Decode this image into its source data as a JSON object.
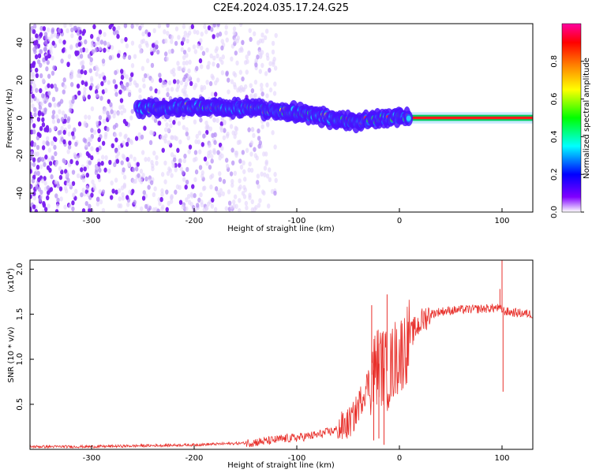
{
  "title": "C2E4.2024.035.17.24.G25",
  "chart_data": [
    {
      "type": "heatmap",
      "xlabel": "Height of straight line (km)",
      "ylabel": "Frequency (Hz)",
      "xlim": [
        -360,
        130
      ],
      "ylim": [
        -50,
        50
      ],
      "xticks": [
        -300,
        -200,
        -100,
        0,
        100
      ],
      "xtick_labels": [
        "-300",
        "-200",
        "-100",
        "0",
        "100"
      ],
      "yticks": [
        -40,
        -20,
        0,
        20,
        40
      ],
      "ytick_labels": [
        "-40",
        "-20",
        "0",
        "20",
        "40"
      ],
      "colorbar": {
        "label": "Normalized spectral amplitude",
        "range": [
          0,
          1
        ],
        "ticks": [
          0.0,
          0.2,
          0.4,
          0.6,
          0.8
        ],
        "tick_labels": [
          "0.0",
          "0.2",
          "0.4",
          "0.6",
          "0.8"
        ],
        "colormap": [
          "#ffffff",
          "#8000ff",
          "#0000ff",
          "#00ffff",
          "#00ff00",
          "#ffff00",
          "#ff8000",
          "#ff0000",
          "#ff00a0"
        ]
      },
      "ridge": {
        "x": [
          -255,
          -200,
          -150,
          -120,
          -100,
          -80,
          -60,
          -40,
          -25,
          -10,
          0,
          10,
          100,
          130
        ],
        "y": [
          5,
          6,
          5,
          4,
          3,
          1,
          -1,
          -2,
          -1,
          0,
          1,
          0,
          0,
          0
        ]
      },
      "noise_region": {
        "x_from": -360,
        "x_to": -160
      }
    },
    {
      "type": "line",
      "xlabel": "Height of straight line (km)",
      "ylabel": "SNR (10 * v/v)",
      "yscale_label": "(x10",
      "yscale_exp": "4",
      "yscale_close": ")",
      "xlim": [
        -360,
        130
      ],
      "ylim": [
        0,
        2.1
      ],
      "xticks": [
        -300,
        -200,
        -100,
        0,
        100
      ],
      "xtick_labels": [
        "-300",
        "-200",
        "-100",
        "0",
        "100"
      ],
      "yticks": [
        0.5,
        1.0,
        1.5,
        2.0
      ],
      "ytick_labels": [
        "0.5",
        "1.0",
        "1.5",
        "2.0"
      ],
      "color": "#e8312c",
      "series": [
        {
          "x": [
            -360,
            -300,
            -250,
            -200,
            -150,
            -130,
            -110,
            -100,
            -80,
            -60,
            -50,
            -45,
            -40,
            -35,
            -30,
            -25,
            -20,
            -15,
            -10,
            -5,
            0,
            5,
            10,
            15,
            20,
            25,
            30,
            40,
            60,
            80,
            95,
            100,
            103,
            110,
            120,
            130
          ],
          "y": [
            0.03,
            0.03,
            0.04,
            0.05,
            0.07,
            0.09,
            0.12,
            0.13,
            0.16,
            0.22,
            0.28,
            0.35,
            0.48,
            0.62,
            0.75,
            0.88,
            0.95,
            0.9,
            0.85,
            1.0,
            1.05,
            1.12,
            1.25,
            1.33,
            1.4,
            1.46,
            1.5,
            1.53,
            1.55,
            1.56,
            1.57,
            1.55,
            1.53,
            1.52,
            1.51,
            1.5
          ]
        }
      ],
      "spikes": [
        {
          "x": -27,
          "y": 1.6
        },
        {
          "x": -12,
          "y": 1.72
        },
        {
          "x": -15,
          "y": 0.05
        },
        {
          "x": -20,
          "y": 0.12
        },
        {
          "x": -25,
          "y": 0.1
        },
        {
          "x": 100,
          "y": 2.1
        },
        {
          "x": 101,
          "y": 0.64
        },
        {
          "x": 98,
          "y": 1.78
        }
      ]
    }
  ]
}
